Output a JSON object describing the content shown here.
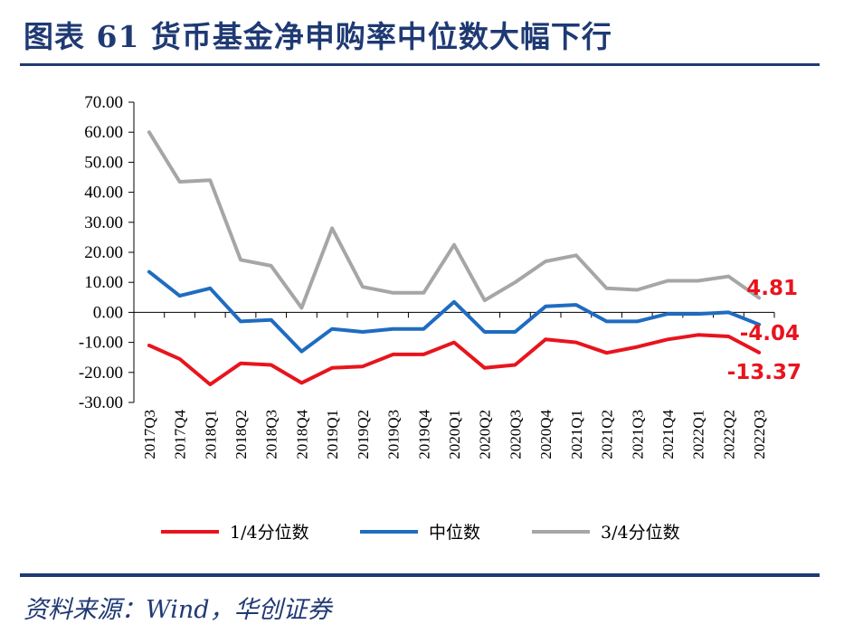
{
  "header": {
    "title": "图表 61  货币基金净申购率中位数大幅下行"
  },
  "footer": {
    "source": "资料来源：Wind，华创证券"
  },
  "colors": {
    "accent": "#1f3a73",
    "q1": "#e8141d",
    "median": "#1f6cc0",
    "q3": "#a6a6a6",
    "annotation": "#e8141d"
  },
  "chart_data": {
    "type": "line",
    "categories": [
      "2017Q3",
      "2017Q4",
      "2018Q1",
      "2018Q2",
      "2018Q3",
      "2018Q4",
      "2019Q1",
      "2019Q2",
      "2019Q3",
      "2019Q4",
      "2020Q1",
      "2020Q2",
      "2020Q3",
      "2020Q4",
      "2021Q1",
      "2021Q2",
      "2021Q3",
      "2021Q4",
      "2022Q1",
      "2022Q2",
      "2022Q3"
    ],
    "y_ticks": [
      "70.00",
      "60.00",
      "50.00",
      "40.00",
      "30.00",
      "20.00",
      "10.00",
      "0.00",
      "-10.00",
      "-20.00",
      "-30.00"
    ],
    "ylim": [
      -30,
      70
    ],
    "series": [
      {
        "name": "1/4分位数",
        "color": "#e8141d",
        "values": [
          -11,
          -15.5,
          -24,
          -17,
          -17.5,
          -23.5,
          -18.5,
          -18,
          -14,
          -14,
          -10,
          -18.5,
          -17.5,
          -9,
          -10,
          -13.5,
          -11.5,
          -9,
          -7.5,
          -8,
          -13.37
        ]
      },
      {
        "name": "中位数",
        "color": "#1f6cc0",
        "values": [
          13.5,
          5.5,
          8,
          -3,
          -2.5,
          -13,
          -5.5,
          -6.5,
          -5.5,
          -5.5,
          3.5,
          -6.5,
          -6.5,
          2,
          2.5,
          -3,
          -3,
          -0.5,
          -0.5,
          0,
          -4.04
        ]
      },
      {
        "name": "3/4分位数",
        "color": "#a6a6a6",
        "values": [
          60,
          43.5,
          44,
          17.5,
          15.5,
          1.5,
          28,
          8.5,
          6.5,
          6.5,
          22.5,
          4,
          10,
          17,
          19,
          8,
          7.5,
          10.5,
          10.5,
          12,
          4.81
        ]
      }
    ],
    "annotations": [
      "4.81",
      "-4.04",
      "-13.37"
    ],
    "legend_position": "bottom",
    "grid": false
  }
}
